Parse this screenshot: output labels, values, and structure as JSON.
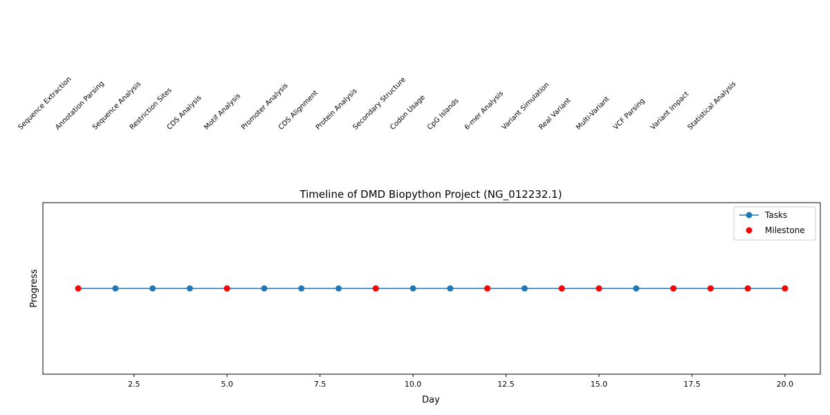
{
  "chart_data": {
    "type": "line",
    "title": "Timeline of DMD Biopython Project (NG_012232.1)",
    "xlabel": "Day",
    "ylabel": "Progress",
    "xlim": [
      0.05,
      20.95
    ],
    "ylim": [
      0,
      2
    ],
    "x_ticks": [
      2.5,
      5.0,
      7.5,
      10.0,
      12.5,
      15.0,
      17.5,
      20.0
    ],
    "x_tick_labels": [
      "2.5",
      "5.0",
      "7.5",
      "10.0",
      "12.5",
      "15.0",
      "17.5",
      "20.0"
    ],
    "grid": false,
    "legend_position": "top-right",
    "series": [
      {
        "name": "Tasks",
        "kind": "line-markers",
        "color": "#1f77b4",
        "x": [
          1,
          2,
          3,
          4,
          5,
          6,
          7,
          8,
          9,
          10,
          11,
          12,
          13,
          14,
          15,
          16,
          17,
          18,
          19,
          20
        ],
        "y": [
          1,
          1,
          1,
          1,
          1,
          1,
          1,
          1,
          1,
          1,
          1,
          1,
          1,
          1,
          1,
          1,
          1,
          1,
          1,
          1
        ]
      },
      {
        "name": "Milestone",
        "kind": "scatter",
        "color": "#ff0000",
        "x": [
          1,
          5,
          9,
          12,
          14,
          15,
          17,
          18,
          19,
          20
        ],
        "y": [
          1,
          1,
          1,
          1,
          1,
          1,
          1,
          1,
          1,
          1
        ]
      }
    ],
    "annotations": [
      {
        "x": 1,
        "text": "Sequence Extraction"
      },
      {
        "x": 2,
        "text": "Annotation Parsing"
      },
      {
        "x": 3,
        "text": "Sequence Analysis"
      },
      {
        "x": 4,
        "text": "Restriction Sites"
      },
      {
        "x": 5,
        "text": "CDS Analysis"
      },
      {
        "x": 6,
        "text": "Motif Analysis"
      },
      {
        "x": 7,
        "text": "Promoter Analysis"
      },
      {
        "x": 8,
        "text": "CDS Alignment"
      },
      {
        "x": 9,
        "text": "Protein Analysis"
      },
      {
        "x": 10,
        "text": "Secondary Structure"
      },
      {
        "x": 11,
        "text": "Codon Usage"
      },
      {
        "x": 12,
        "text": "CpG Islands"
      },
      {
        "x": 13,
        "text": "6-mer Analysis"
      },
      {
        "x": 14,
        "text": "Variant Simulation"
      },
      {
        "x": 15,
        "text": "Real Variant"
      },
      {
        "x": 16,
        "text": "Multi-Variant"
      },
      {
        "x": 17,
        "text": "VCF Parsing"
      },
      {
        "x": 18,
        "text": "Variant Impact"
      },
      {
        "x": 19,
        "text": "Statistical Analysis"
      }
    ]
  }
}
